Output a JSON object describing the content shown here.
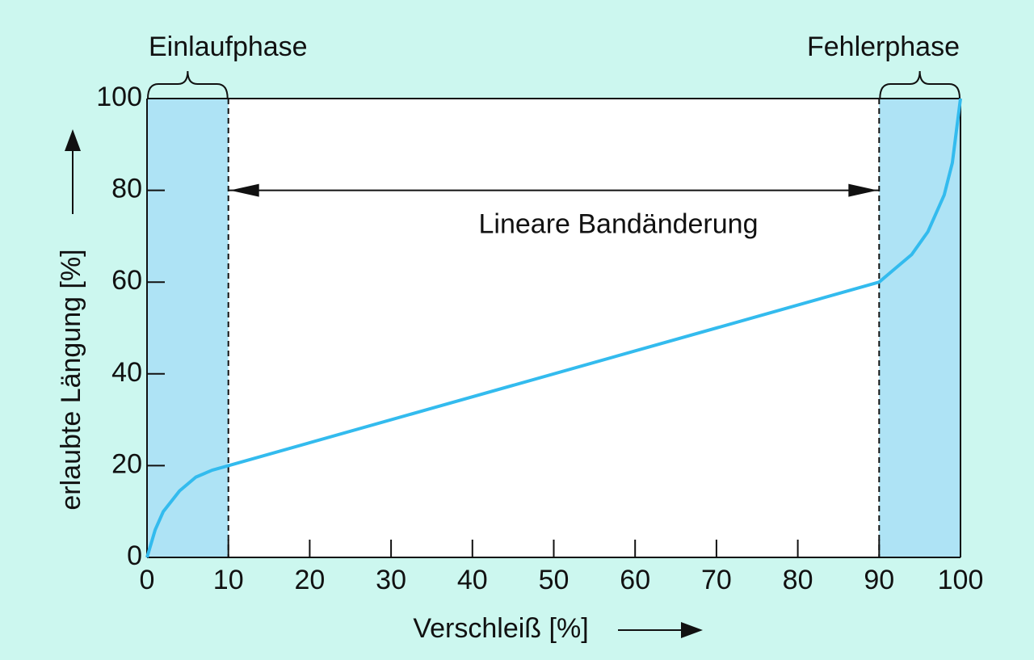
{
  "chart_data": {
    "type": "line",
    "x_label": "Verschleiß [%]",
    "y_label": "erlaubte Längung [%]",
    "x": [
      0,
      1,
      2,
      4,
      6,
      8,
      10,
      90,
      92,
      94,
      96,
      98,
      99,
      100
    ],
    "values": [
      0,
      6,
      10,
      14.5,
      17.5,
      19,
      20,
      60,
      63,
      66,
      71,
      79,
      86,
      100
    ],
    "color": "#33bbee",
    "xlim": [
      0,
      100
    ],
    "ylim": [
      0,
      100
    ],
    "xticks": [
      0,
      10,
      20,
      30,
      40,
      50,
      60,
      70,
      80,
      90,
      100
    ],
    "yticks": [
      0,
      20,
      40,
      60,
      80,
      100
    ],
    "regions": [
      {
        "label": "Einlaufphase",
        "x": [
          0,
          10
        ],
        "color": "#aee3f5"
      },
      {
        "label": "Fehlerphase",
        "x": [
          90,
          100
        ],
        "color": "#aee3f5"
      }
    ],
    "arrows": [
      {
        "label": "Lineare Bandänderung",
        "x": [
          10,
          90
        ],
        "y": 80
      }
    ]
  }
}
